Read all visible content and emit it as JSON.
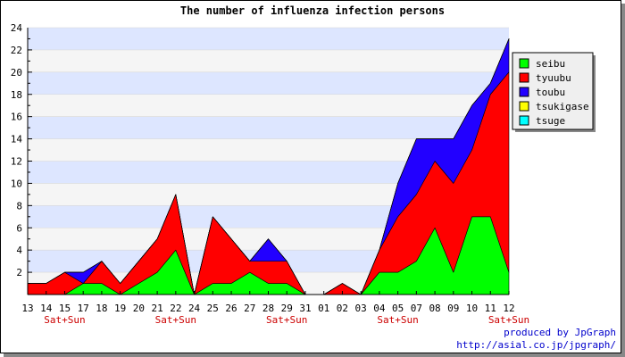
{
  "chart_data": {
    "type": "area",
    "stacked": true,
    "title": "The number of influenza infection persons",
    "xlabel": "",
    "ylabel": "",
    "ylim": [
      0,
      24
    ],
    "yticks": [
      2,
      4,
      6,
      8,
      10,
      12,
      14,
      16,
      18,
      20,
      22,
      24
    ],
    "categories": [
      "13",
      "14",
      "15",
      "17",
      "18",
      "19",
      "20",
      "21",
      "22",
      "24",
      "25",
      "26",
      "27",
      "28",
      "29",
      "31",
      "01",
      "02",
      "03",
      "04",
      "05",
      "07",
      "08",
      "09",
      "10",
      "11",
      "12"
    ],
    "weekend_marks": [
      {
        "category": "15",
        "label": "Sat+Sun"
      },
      {
        "category": "22",
        "label": "Sat+Sun"
      },
      {
        "category": "29",
        "label": "Sat+Sun"
      },
      {
        "category": "05",
        "label": "Sat+Sun"
      },
      {
        "category": "12",
        "label": "Sat+Sun"
      }
    ],
    "series": [
      {
        "name": "seibu",
        "color": "#00ff00",
        "values": [
          0,
          0,
          0,
          1,
          1,
          0,
          1,
          2,
          4,
          0,
          1,
          1,
          2,
          1,
          1,
          0,
          0,
          0,
          0,
          2,
          2,
          3,
          6,
          2,
          7,
          7,
          2
        ]
      },
      {
        "name": "tyuubu",
        "color": "#ff0000",
        "values": [
          1,
          1,
          2,
          0,
          2,
          1,
          2,
          3,
          5,
          0,
          6,
          4,
          1,
          2,
          2,
          0,
          0,
          1,
          0,
          2,
          5,
          6,
          6,
          8,
          6,
          11,
          18
        ]
      },
      {
        "name": "toubu",
        "color": "#2200ff",
        "values": [
          0,
          0,
          0,
          1,
          0,
          0,
          0,
          0,
          0,
          0,
          0,
          0,
          0,
          2,
          0,
          0,
          0,
          0,
          0,
          0,
          3,
          5,
          2,
          4,
          4,
          1,
          3
        ]
      },
      {
        "name": "tsukigase",
        "color": "#ffff00",
        "values": [
          0,
          0,
          0,
          0,
          0,
          0,
          0,
          0,
          0,
          0,
          0,
          0,
          0,
          0,
          0,
          0,
          0,
          0,
          0,
          0,
          0,
          0,
          0,
          0,
          0,
          0,
          0
        ]
      },
      {
        "name": "tsuge",
        "color": "#00ffff",
        "values": [
          0,
          0,
          0,
          0,
          0,
          0,
          0,
          0,
          0,
          0,
          0,
          0,
          0,
          0,
          0,
          0,
          0,
          0,
          0,
          0,
          0,
          0,
          0,
          0,
          0,
          0,
          0
        ]
      }
    ],
    "grid": true,
    "legend_position": "right"
  },
  "credit": {
    "line1": "produced by JpGraph",
    "line2": "http://asial.co.jp/jpgraph/"
  }
}
